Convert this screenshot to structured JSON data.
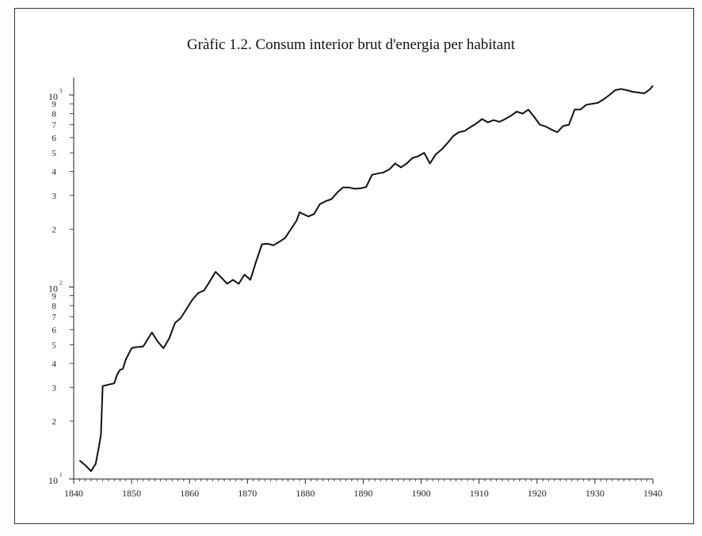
{
  "chart_data": {
    "type": "line",
    "title": "Gràfic 1.2. Consum interior brut d'energia per habitant",
    "xlabel": "",
    "ylabel": "",
    "xlim": [
      1840,
      1940
    ],
    "ylim": [
      10,
      1000
    ],
    "y_scale": "log",
    "x_ticks": [
      "1840",
      "1850",
      "1860",
      "1870",
      "1880",
      "1890",
      "1900",
      "1910",
      "1920",
      "1930",
      "1940"
    ],
    "y_decade_ticks": [
      {
        "base": "10",
        "exp": "1"
      },
      {
        "base": "10",
        "exp": "2"
      },
      {
        "base": "10",
        "exp": "3"
      }
    ],
    "y_minor_tick_labels": [
      "2",
      "3",
      "4",
      "5",
      "6",
      "7",
      "8",
      "9"
    ],
    "grid": false,
    "series": [
      {
        "color": "#111111",
        "x": [
          1841,
          1842,
          1843,
          1843.8,
          1844.4,
          1844.7,
          1845,
          1846,
          1847,
          1847.5,
          1848,
          1848.5,
          1849,
          1850,
          1850.5,
          1852,
          1853.5,
          1854.5,
          1855.5,
          1856.5,
          1857.5,
          1858.5,
          1859.5,
          1860.5,
          1861.5,
          1862.5,
          1863.5,
          1864.5,
          1865.5,
          1866.5,
          1867.5,
          1868.5,
          1869.5,
          1870.5,
          1871.5,
          1872.5,
          1873.5,
          1874.5,
          1875.5,
          1876.5,
          1877.5,
          1878.5,
          1879,
          1880.5,
          1881.5,
          1882.5,
          1883.5,
          1884.5,
          1885.5,
          1886.5,
          1887.5,
          1888.5,
          1889.5,
          1890.5,
          1891.5,
          1892.5,
          1893.5,
          1894.5,
          1895.5,
          1896.5,
          1897.5,
          1898.5,
          1899.5,
          1900.5,
          1901.5,
          1902.5,
          1903.5,
          1904.5,
          1905.5,
          1906.5,
          1907.5,
          1908.5,
          1909.5,
          1910.5,
          1911.5,
          1912.5,
          1913.5,
          1914.5,
          1915.5,
          1916.5,
          1917.5,
          1918.5,
          1919.5,
          1920.5,
          1921.5,
          1922.5,
          1923.5,
          1924.5,
          1925.5,
          1926.5,
          1927.5,
          1928.5,
          1929.5,
          1930.5,
          1931.5,
          1932.5,
          1933.5,
          1934.5,
          1935.5,
          1936.5,
          1937.5,
          1938.5,
          1939.5,
          1940
        ],
        "values": [
          12.5,
          11.8,
          11.0,
          12.0,
          15.0,
          17.0,
          30.5,
          31.0,
          31.5,
          35.0,
          37.0,
          37.5,
          42.0,
          48.0,
          48.5,
          49.0,
          58.0,
          52.0,
          48.0,
          54.0,
          65.0,
          69.0,
          77.0,
          86.0,
          93.0,
          96.0,
          107.0,
          120.0,
          112.0,
          104.0,
          109.0,
          104.0,
          116.0,
          109.0,
          136.0,
          167.0,
          168.0,
          165.0,
          172.0,
          180.0,
          200.0,
          222.0,
          245.0,
          233.0,
          240.0,
          270.0,
          280.0,
          287.0,
          310.0,
          330.0,
          330.0,
          325.0,
          326.0,
          332.0,
          384.0,
          390.0,
          395.0,
          410.0,
          440.0,
          420.0,
          440.0,
          470.0,
          480.0,
          500.0,
          440.0,
          490.0,
          520.0,
          560.0,
          610.0,
          640.0,
          650.0,
          680.0,
          710.0,
          750.0,
          720.0,
          740.0,
          725.0,
          750.0,
          780.0,
          820.0,
          800.0,
          840.0,
          770.0,
          700.0,
          685.0,
          660.0,
          640.0,
          690.0,
          700.0,
          840.0,
          840.0,
          890.0,
          900.0,
          910.0,
          950.0,
          1000.0,
          1060.0,
          1075.0,
          1060.0,
          1040.0,
          1030.0,
          1020.0,
          1070.0,
          1120.0
        ]
      }
    ]
  }
}
